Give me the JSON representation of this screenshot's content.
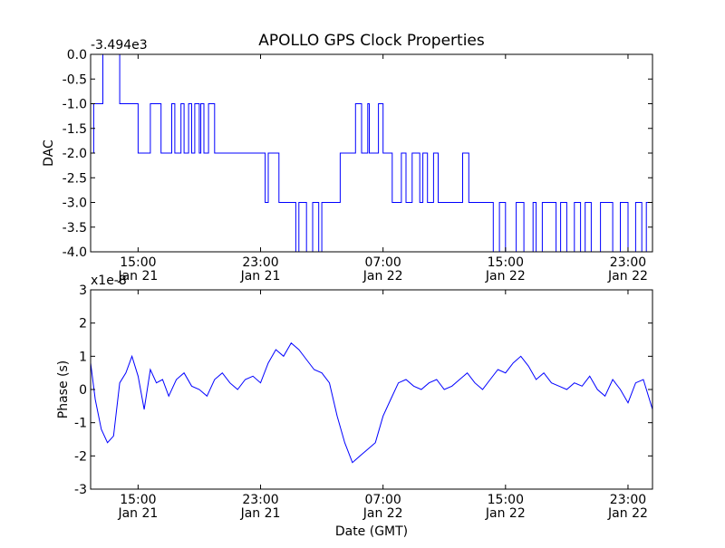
{
  "figure": {
    "title": "APOLLO GPS Clock Properties",
    "xlabel": "Date (GMT)"
  },
  "chart_data": [
    {
      "type": "line",
      "name": "dac",
      "ylabel": "DAC",
      "offset_text": "-3.494e3",
      "ylim": [
        -4.0,
        0.0
      ],
      "yticks": [
        0.0,
        -0.5,
        -1.0,
        -1.5,
        -2.0,
        -2.5,
        -3.0,
        -3.5,
        -4.0
      ],
      "ytick_labels": [
        "0.0",
        "-0.5",
        "-1.0",
        "-1.5",
        "-2.0",
        "-2.5",
        "-3.0",
        "-3.5",
        "-4.0"
      ],
      "xlim_hours": [
        11.9,
        48.6
      ],
      "xticks_hours": [
        15,
        23,
        31,
        39,
        47
      ],
      "xtick_labels": [
        [
          "15:00",
          "Jan 21"
        ],
        [
          "23:00",
          "Jan 21"
        ],
        [
          "07:00",
          "Jan 22"
        ],
        [
          "15:00",
          "Jan 22"
        ],
        [
          "23:00",
          "Jan 22"
        ]
      ],
      "color": "#0000ff",
      "x_hours": [
        11.9,
        12.0,
        12.1,
        12.3,
        12.5,
        12.7,
        13.6,
        13.8,
        14.4,
        14.7,
        15.0,
        15.8,
        16.3,
        16.5,
        17.2,
        17.4,
        17.8,
        18.0,
        18.3,
        18.5,
        18.7,
        19.0,
        19.1,
        19.3,
        19.6,
        20.0,
        20.8,
        21.5,
        22.0,
        22.8,
        23.3,
        23.5,
        24.2,
        24.8,
        25.0,
        25.3,
        25.5,
        26.0,
        26.4,
        26.8,
        27.0,
        27.8,
        28.2,
        28.8,
        29.2,
        29.6,
        30.0,
        30.1,
        30.4,
        30.7,
        31.0,
        31.4,
        31.6,
        32.2,
        32.5,
        32.9,
        33.4,
        33.6,
        33.9,
        34.3,
        34.6,
        35.0,
        35.8,
        36.2,
        36.6,
        37.0,
        37.8,
        38.2,
        38.6,
        39.0,
        39.7,
        40.2,
        40.8,
        41.0,
        41.4,
        41.9,
        42.3,
        42.6,
        43.0,
        43.5,
        43.9,
        44.2,
        44.6,
        45.2,
        45.6,
        46.0,
        46.5,
        47.0,
        47.5,
        47.9,
        48.2,
        48.6
      ],
      "y": [
        -2.0,
        -2.0,
        -1.0,
        -1.0,
        -1.0,
        0.0,
        0.0,
        -1.0,
        -1.0,
        -1.0,
        -2.0,
        -1.0,
        -1.0,
        -2.0,
        -1.0,
        -2.0,
        -1.0,
        -2.0,
        -1.0,
        -2.0,
        -1.0,
        -2.0,
        -1.0,
        -2.0,
        -1.0,
        -2.0,
        -2.0,
        -2.0,
        -2.0,
        -2.0,
        -3.0,
        -2.0,
        -3.0,
        -3.0,
        -3.0,
        -4.0,
        -3.0,
        -4.0,
        -3.0,
        -4.0,
        -3.0,
        -3.0,
        -2.0,
        -2.0,
        -1.0,
        -2.0,
        -1.0,
        -2.0,
        -2.0,
        -1.0,
        -2.0,
        -2.0,
        -3.0,
        -2.0,
        -3.0,
        -2.0,
        -3.0,
        -2.0,
        -3.0,
        -2.0,
        -3.0,
        -3.0,
        -3.0,
        -2.0,
        -3.0,
        -3.0,
        -3.0,
        -4.0,
        -3.0,
        -4.0,
        -3.0,
        -4.0,
        -3.0,
        -4.0,
        -3.0,
        -3.0,
        -4.0,
        -3.0,
        -4.0,
        -3.0,
        -4.0,
        -3.0,
        -4.0,
        -3.0,
        -3.0,
        -4.0,
        -3.0,
        -4.0,
        -3.0,
        -4.0,
        -3.0,
        -3.0
      ]
    },
    {
      "type": "line",
      "name": "phase",
      "ylabel": "Phase (s)",
      "offset_text": "x1e-8",
      "ylim": [
        -3,
        3
      ],
      "yticks": [
        3,
        2,
        1,
        0,
        -1,
        -2,
        -3
      ],
      "ytick_labels": [
        "3",
        "2",
        "1",
        "0",
        "-1",
        "-2",
        "-3"
      ],
      "xlim_hours": [
        11.9,
        48.6
      ],
      "xticks_hours": [
        15,
        23,
        31,
        39,
        47
      ],
      "xtick_labels": [
        [
          "15:00",
          "Jan 21"
        ],
        [
          "23:00",
          "Jan 21"
        ],
        [
          "07:00",
          "Jan 22"
        ],
        [
          "15:00",
          "Jan 22"
        ],
        [
          "23:00",
          "Jan 22"
        ]
      ],
      "color": "#0000ff",
      "x_hours": [
        11.9,
        12.2,
        12.6,
        13.0,
        13.4,
        13.8,
        14.2,
        14.6,
        15.0,
        15.4,
        15.8,
        16.2,
        16.6,
        17.0,
        17.5,
        18.0,
        18.5,
        19.0,
        19.5,
        20.0,
        20.5,
        21.0,
        21.5,
        22.0,
        22.5,
        23.0,
        23.5,
        24.0,
        24.5,
        25.0,
        25.5,
        26.0,
        26.5,
        27.0,
        27.5,
        28.0,
        28.5,
        29.0,
        29.5,
        30.0,
        30.5,
        31.0,
        31.5,
        32.0,
        32.5,
        33.0,
        33.5,
        34.0,
        34.5,
        35.0,
        35.5,
        36.0,
        36.5,
        37.0,
        37.5,
        38.0,
        38.5,
        39.0,
        39.5,
        40.0,
        40.5,
        41.0,
        41.5,
        42.0,
        42.5,
        43.0,
        43.5,
        44.0,
        44.5,
        45.0,
        45.5,
        46.0,
        46.5,
        47.0,
        47.5,
        48.0,
        48.6
      ],
      "y": [
        0.8,
        -0.3,
        -1.2,
        -1.6,
        -1.4,
        0.2,
        0.5,
        1.0,
        0.4,
        -0.6,
        0.6,
        0.2,
        0.3,
        -0.2,
        0.3,
        0.5,
        0.1,
        0.0,
        -0.2,
        0.3,
        0.5,
        0.2,
        0.0,
        0.3,
        0.4,
        0.2,
        0.8,
        1.2,
        1.0,
        1.4,
        1.2,
        0.9,
        0.6,
        0.5,
        0.2,
        -0.8,
        -1.6,
        -2.2,
        -2.0,
        -1.8,
        -1.6,
        -0.8,
        -0.3,
        0.2,
        0.3,
        0.1,
        0.0,
        0.2,
        0.3,
        0.0,
        0.1,
        0.3,
        0.5,
        0.2,
        0.0,
        0.3,
        0.6,
        0.5,
        0.8,
        1.0,
        0.7,
        0.3,
        0.5,
        0.2,
        0.1,
        0.0,
        0.2,
        0.1,
        0.4,
        0.0,
        -0.2,
        0.3,
        0.0,
        -0.4,
        0.2,
        0.3,
        -0.6
      ]
    }
  ]
}
